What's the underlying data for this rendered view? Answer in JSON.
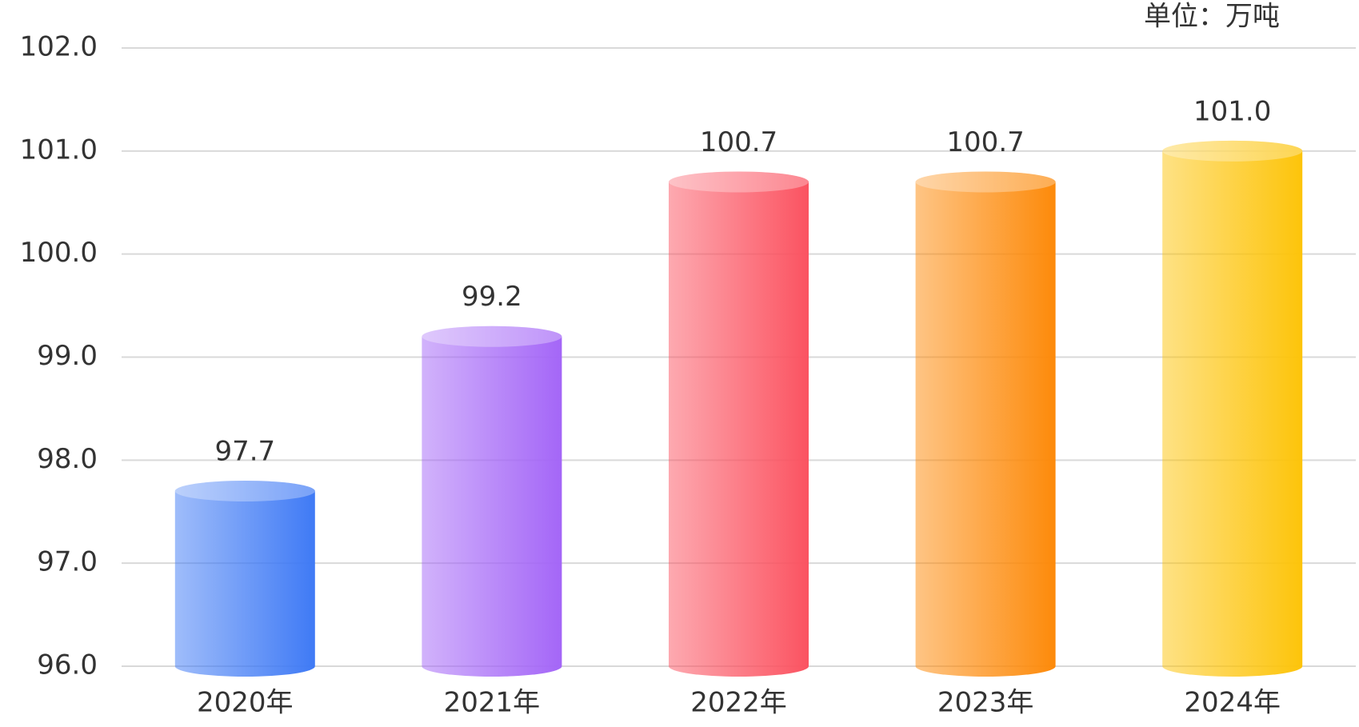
{
  "chart_data": {
    "type": "bar",
    "unit": "单位：万吨",
    "categories": [
      "2020年",
      "2021年",
      "2022年",
      "2023年",
      "2024年"
    ],
    "values": [
      97.7,
      99.2,
      100.7,
      100.7,
      101.0
    ],
    "value_labels": [
      "97.7",
      "99.2",
      "100.7",
      "100.7",
      "101.0"
    ],
    "colors": [
      "#3f7af5",
      "#a466f7",
      "#fb5361",
      "#fd8a0a",
      "#fdc40a"
    ],
    "ylim": [
      96,
      102
    ],
    "yticks": [
      {
        "value": 96,
        "label": "96.0"
      },
      {
        "value": 97,
        "label": "97.0"
      },
      {
        "value": 98,
        "label": "98.0"
      },
      {
        "value": 99,
        "label": "99.0"
      },
      {
        "value": 100,
        "label": "100.0"
      },
      {
        "value": 101,
        "label": "101.0"
      },
      {
        "value": 102,
        "label": "102.0"
      }
    ],
    "grid": true
  }
}
